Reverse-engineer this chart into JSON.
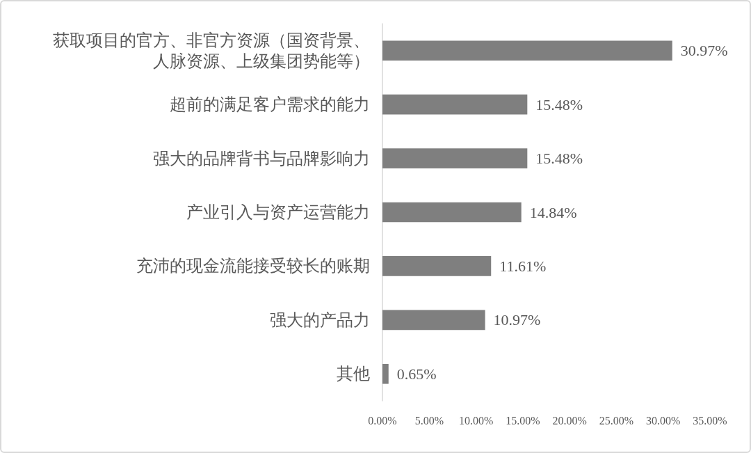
{
  "chart_data": {
    "type": "bar",
    "orientation": "horizontal",
    "categories": [
      "获取项目的官方、非官方资源（国资背景、人脉资源、上级集团势能等）",
      "超前的满足客户需求的能力",
      "强大的品牌背书与品牌影响力",
      "产业引入与资产运营能力",
      "充沛的现金流能接受较长的账期",
      "强大的产品力",
      "其他"
    ],
    "values": [
      30.97,
      15.48,
      15.48,
      14.84,
      11.61,
      10.97,
      0.65
    ],
    "color": "#7f7f7f",
    "value_labels": [
      "30.97%",
      "15.48%",
      "15.48%",
      "14.84%",
      "11.61%",
      "10.97%",
      "0.65%"
    ],
    "xlim": [
      0,
      35
    ],
    "xticks": [
      {
        "value": 0,
        "label": "0.00%"
      },
      {
        "value": 5,
        "label": "5.00%"
      },
      {
        "value": 10,
        "label": "10.00%"
      },
      {
        "value": 15,
        "label": "15.00%"
      },
      {
        "value": 20,
        "label": "20.00%"
      },
      {
        "value": 25,
        "label": "25.00%"
      },
      {
        "value": 30,
        "label": "30.00%"
      },
      {
        "value": 35,
        "label": "35.00%"
      }
    ]
  }
}
